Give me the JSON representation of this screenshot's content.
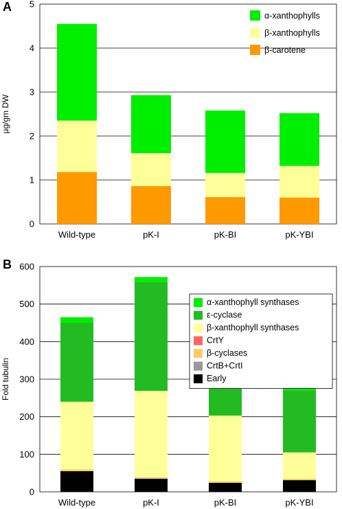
{
  "chart_data": [
    {
      "panel": "A",
      "type": "bar",
      "stacked": true,
      "ylabel": "µg/gm DW",
      "ylim": [
        0,
        5
      ],
      "yticks": [
        0,
        1,
        2,
        3,
        4,
        5
      ],
      "grid": true,
      "legend_position": "top-right",
      "categories": [
        "Wild-type",
        "pK-I",
        "pK-BI",
        "pK-YBI"
      ],
      "series": [
        {
          "name": "β-carotene",
          "color": "#ff9900",
          "values": [
            1.18,
            0.86,
            0.61,
            0.6
          ]
        },
        {
          "name": "β-xanthophylls",
          "color": "#ffff99",
          "values": [
            1.17,
            0.75,
            0.55,
            0.72
          ]
        },
        {
          "name": "α-xanthophylls",
          "color": "#00ee00",
          "values": [
            2.2,
            1.32,
            1.42,
            1.2
          ]
        }
      ]
    },
    {
      "panel": "B",
      "type": "bar",
      "stacked": true,
      "ylabel": "Fold tubulin",
      "ylim": [
        0,
        600
      ],
      "yticks": [
        0,
        100,
        200,
        300,
        400,
        500,
        600
      ],
      "grid": true,
      "legend_position": "top-right",
      "categories": [
        "Wild-type",
        "pK-I",
        "pK-BI",
        "pK-YBI"
      ],
      "series": [
        {
          "name": "Early",
          "color": "#000000",
          "values": [
            55,
            35,
            24,
            31
          ]
        },
        {
          "name": "CrtB+CrtI",
          "color": "#999999",
          "values": [
            0,
            0,
            0,
            0
          ]
        },
        {
          "name": "β-cyclases",
          "color": "#ffcc66",
          "values": [
            5,
            4,
            4,
            4
          ]
        },
        {
          "name": "CrtY",
          "color": "#ff6666",
          "values": [
            0,
            0,
            0,
            0
          ]
        },
        {
          "name": "β-xanthophyll synthases",
          "color": "#ffff99",
          "values": [
            180,
            230,
            175,
            70
          ]
        },
        {
          "name": "ε-cyclase",
          "color": "#22bb22",
          "values": [
            210,
            290,
            72,
            165
          ]
        },
        {
          "name": "α-xanthophyll synthases",
          "color": "#00ee00",
          "values": [
            15,
            13,
            25,
            8
          ]
        }
      ],
      "legend_order": [
        "α-xanthophyll synthases",
        "ε-cyclase",
        "β-xanthophyll synthases",
        "CrtY",
        "β-cyclases",
        "CrtB+CrtI",
        "Early"
      ]
    }
  ]
}
